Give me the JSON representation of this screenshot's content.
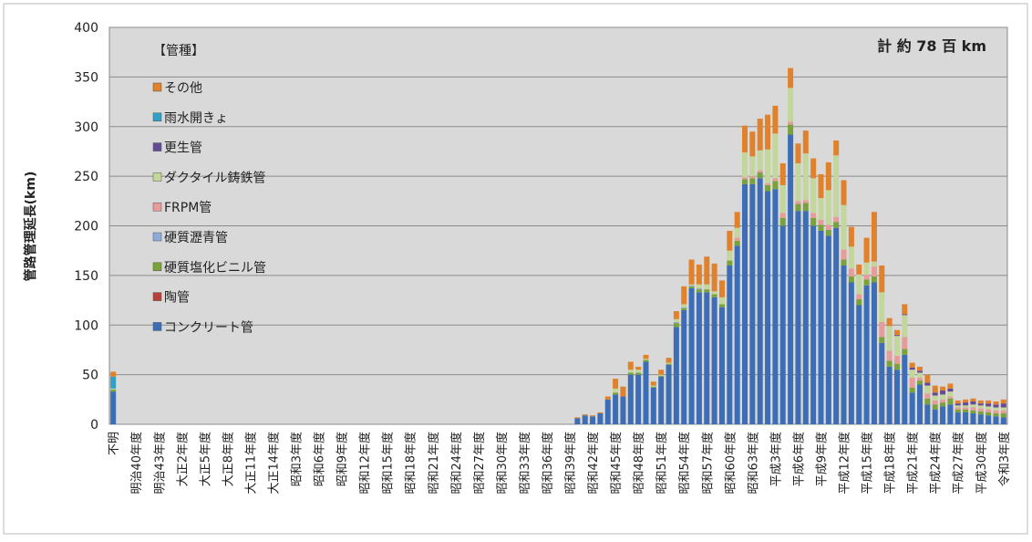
{
  "chart_data": {
    "type": "stacked-bar",
    "ylabel": "管路管理延長(km)",
    "annotation": "計 約 78 百 km",
    "legend_title": "【管種】",
    "categories": [
      "不明",
      null,
      null,
      "明治40年度",
      null,
      null,
      "明治43年度",
      null,
      null,
      "大正2年度",
      null,
      null,
      "大正5年度",
      null,
      null,
      "大正8年度",
      null,
      null,
      "大正11年度",
      null,
      null,
      "大正14年度",
      null,
      null,
      "昭和3年度",
      null,
      null,
      "昭和6年度",
      null,
      null,
      "昭和9年度",
      null,
      null,
      "昭和12年度",
      null,
      null,
      "昭和15年度",
      null,
      null,
      "昭和18年度",
      null,
      null,
      "昭和21年度",
      null,
      null,
      "昭和24年度",
      null,
      null,
      "昭和27年度",
      null,
      null,
      "昭和30年度",
      null,
      null,
      "昭和33年度",
      null,
      null,
      "昭和36年度",
      null,
      null,
      "昭和39年度",
      null,
      null,
      "昭和42年度",
      null,
      null,
      "昭和45年度",
      null,
      null,
      "昭和48年度",
      null,
      null,
      "昭和51年度",
      null,
      null,
      "昭和54年度",
      null,
      null,
      "昭和57年度",
      null,
      null,
      "昭和60年度",
      null,
      null,
      "昭和63年度",
      null,
      null,
      "平成3年度",
      null,
      null,
      "平成6年度",
      null,
      null,
      "平成9年度",
      null,
      null,
      "平成12年度",
      null,
      null,
      "平成15年度",
      null,
      null,
      "平成18年度",
      null,
      null,
      "平成21年度",
      null,
      null,
      "平成24年度",
      null,
      null,
      "平成27年度",
      null,
      null,
      "平成30年度",
      null,
      null,
      "令和3年度"
    ],
    "series": [
      {
        "name": "コンクリート管",
        "color": "#3d6db5",
        "values": [
          33,
          0,
          0,
          0,
          0,
          0,
          0,
          0,
          0,
          0,
          0,
          0,
          0,
          0,
          0,
          0,
          0,
          0,
          0,
          0,
          0,
          0,
          0,
          0,
          0,
          0,
          0,
          0,
          0,
          0,
          0,
          0,
          0,
          0,
          0,
          0,
          0,
          0,
          0,
          0,
          0,
          0,
          0,
          0,
          0,
          0,
          0,
          0,
          0,
          0,
          0,
          0,
          0,
          0,
          0,
          0,
          0,
          0,
          0,
          0,
          0,
          6,
          9,
          8,
          11,
          25,
          30,
          28,
          50,
          50,
          63,
          37,
          48,
          60,
          98,
          115,
          137,
          133,
          133,
          128,
          118,
          160,
          180,
          242,
          242,
          248,
          235,
          237,
          200,
          292,
          215,
          215,
          200,
          195,
          190,
          198,
          160,
          143,
          120,
          140,
          143,
          82,
          58,
          55,
          70,
          32,
          40,
          20,
          15,
          18,
          20,
          12,
          12,
          11,
          10,
          9,
          8,
          7
        ]
      },
      {
        "name": "陶管",
        "color": "#b8403a",
        "values": [
          0,
          0,
          0,
          0,
          0,
          0,
          0,
          0,
          0,
          0,
          0,
          0,
          0,
          0,
          0,
          0,
          0,
          0,
          0,
          0,
          0,
          0,
          0,
          0,
          0,
          0,
          0,
          0,
          0,
          0,
          0,
          0,
          0,
          0,
          0,
          0,
          0,
          0,
          0,
          0,
          0,
          0,
          0,
          0,
          0,
          0,
          0,
          0,
          0,
          0,
          0,
          0,
          0,
          0,
          0,
          0,
          0,
          0,
          0,
          0,
          0,
          0,
          0,
          0,
          0,
          0,
          0,
          0,
          0,
          0,
          0,
          0,
          0,
          0,
          0,
          0,
          0,
          0,
          0,
          0,
          0,
          0,
          0,
          0,
          0,
          0,
          0,
          0,
          0,
          0,
          0,
          0,
          0,
          0,
          0,
          0,
          0,
          0,
          0,
          0,
          0,
          0,
          0,
          0,
          0,
          0,
          0,
          0,
          0,
          0,
          0,
          0,
          0,
          0,
          0,
          0,
          0,
          0
        ]
      },
      {
        "name": "硬質塩化ビニル管",
        "color": "#7aa23a",
        "values": [
          2,
          0,
          0,
          0,
          0,
          0,
          0,
          0,
          0,
          0,
          0,
          0,
          0,
          0,
          0,
          0,
          0,
          0,
          0,
          0,
          0,
          0,
          0,
          0,
          0,
          0,
          0,
          0,
          0,
          0,
          0,
          0,
          0,
          0,
          0,
          0,
          0,
          0,
          0,
          0,
          0,
          0,
          0,
          0,
          0,
          0,
          0,
          0,
          0,
          0,
          0,
          0,
          0,
          0,
          0,
          0,
          0,
          0,
          0,
          0,
          0,
          0,
          0,
          0,
          0,
          0,
          2,
          0,
          2,
          2,
          2,
          1,
          1,
          1,
          4,
          2,
          2,
          3,
          3,
          3,
          3,
          5,
          5,
          5,
          6,
          6,
          6,
          8,
          8,
          10,
          7,
          8,
          8,
          6,
          6,
          6,
          6,
          6,
          6,
          6,
          6,
          6,
          6,
          6,
          6,
          5,
          4,
          6,
          5,
          4,
          6,
          3,
          3,
          3,
          3,
          3,
          3,
          4
        ]
      },
      {
        "name": "硬質瀝青管",
        "color": "#8eaad8",
        "values": [
          0,
          0,
          0,
          0,
          0,
          0,
          0,
          0,
          0,
          0,
          0,
          0,
          0,
          0,
          0,
          0,
          0,
          0,
          0,
          0,
          0,
          0,
          0,
          0,
          0,
          0,
          0,
          0,
          0,
          0,
          0,
          0,
          0,
          0,
          0,
          0,
          0,
          0,
          0,
          0,
          0,
          0,
          0,
          0,
          0,
          0,
          0,
          0,
          0,
          0,
          0,
          0,
          0,
          0,
          0,
          0,
          0,
          0,
          0,
          0,
          0,
          0,
          0,
          0,
          0,
          0,
          0,
          0,
          0,
          0,
          0,
          0,
          0,
          0,
          1,
          1,
          1,
          1,
          0,
          0,
          0,
          0,
          0,
          0,
          0,
          0,
          0,
          0,
          0,
          0,
          0,
          0,
          0,
          0,
          0,
          0,
          0,
          0,
          0,
          0,
          0,
          0,
          0,
          0,
          0,
          0,
          0,
          0,
          0,
          0,
          0,
          0,
          0,
          0,
          0,
          0,
          0,
          0
        ]
      },
      {
        "name": "FRPM管",
        "color": "#e79c9c",
        "values": [
          0,
          0,
          0,
          0,
          0,
          0,
          0,
          0,
          0,
          0,
          0,
          0,
          0,
          0,
          0,
          0,
          0,
          0,
          0,
          0,
          0,
          0,
          0,
          0,
          0,
          0,
          0,
          0,
          0,
          0,
          0,
          0,
          0,
          0,
          0,
          0,
          0,
          0,
          0,
          0,
          0,
          0,
          0,
          0,
          0,
          0,
          0,
          0,
          0,
          0,
          0,
          0,
          0,
          0,
          0,
          0,
          0,
          0,
          0,
          0,
          0,
          0,
          0,
          0,
          0,
          0,
          0,
          0,
          0,
          0,
          0,
          0,
          0,
          0,
          0,
          0,
          0,
          0,
          0,
          0,
          0,
          0,
          3,
          2,
          2,
          2,
          2,
          3,
          5,
          3,
          3,
          3,
          5,
          5,
          5,
          5,
          10,
          8,
          5,
          5,
          10,
          15,
          10,
          8,
          12,
          10,
          3,
          5,
          4,
          3,
          2,
          2,
          2,
          3,
          3,
          3,
          3,
          3
        ]
      },
      {
        "name": "ダクタイル鋳鉄管",
        "color": "#c3d69b",
        "values": [
          1,
          0,
          0,
          0,
          0,
          0,
          0,
          0,
          0,
          0,
          0,
          0,
          0,
          0,
          0,
          0,
          0,
          0,
          0,
          0,
          0,
          0,
          0,
          0,
          0,
          0,
          0,
          0,
          0,
          0,
          0,
          0,
          0,
          0,
          0,
          0,
          0,
          0,
          0,
          0,
          0,
          0,
          0,
          0,
          0,
          0,
          0,
          0,
          0,
          0,
          0,
          0,
          0,
          0,
          0,
          0,
          0,
          0,
          0,
          0,
          0,
          0,
          0,
          0,
          0,
          0,
          4,
          0,
          3,
          3,
          1,
          1,
          1,
          1,
          3,
          3,
          1,
          4,
          5,
          3,
          7,
          10,
          10,
          25,
          20,
          20,
          34,
          45,
          28,
          34,
          38,
          47,
          35,
          22,
          35,
          62,
          45,
          22,
          20,
          12,
          5,
          30,
          25,
          20,
          22,
          8,
          5,
          8,
          5,
          5,
          5,
          2,
          2,
          3,
          3,
          3,
          3,
          3
        ]
      },
      {
        "name": "更生管",
        "color": "#654b92",
        "values": [
          0,
          0,
          0,
          0,
          0,
          0,
          0,
          0,
          0,
          0,
          0,
          0,
          0,
          0,
          0,
          0,
          0,
          0,
          0,
          0,
          0,
          0,
          0,
          0,
          0,
          0,
          0,
          0,
          0,
          0,
          0,
          0,
          0,
          0,
          0,
          0,
          0,
          0,
          0,
          0,
          0,
          0,
          0,
          0,
          0,
          0,
          0,
          0,
          0,
          0,
          0,
          0,
          0,
          0,
          0,
          0,
          0,
          0,
          0,
          0,
          0,
          0,
          0,
          0,
          0,
          0,
          0,
          0,
          0,
          0,
          0,
          0,
          0,
          0,
          0,
          0,
          0,
          0,
          0,
          0,
          0,
          0,
          0,
          0,
          0,
          0,
          0,
          0,
          0,
          0,
          0,
          0,
          0,
          0,
          0,
          0,
          0,
          0,
          0,
          0,
          0,
          0,
          0,
          1,
          1,
          2,
          2,
          3,
          3,
          4,
          3,
          2,
          3,
          3,
          2,
          3,
          3,
          4
        ]
      },
      {
        "name": "雨水開きょ",
        "color": "#31a0c2",
        "values": [
          12,
          0,
          0,
          0,
          0,
          0,
          0,
          0,
          0,
          0,
          0,
          0,
          0,
          0,
          0,
          0,
          0,
          0,
          0,
          0,
          0,
          0,
          0,
          0,
          0,
          0,
          0,
          0,
          0,
          0,
          0,
          0,
          0,
          0,
          0,
          0,
          0,
          0,
          0,
          0,
          0,
          0,
          0,
          0,
          0,
          0,
          0,
          0,
          0,
          0,
          0,
          0,
          0,
          0,
          0,
          0,
          0,
          0,
          0,
          0,
          0,
          0,
          0,
          0,
          0,
          0,
          0,
          0,
          0,
          0,
          0,
          0,
          0,
          0,
          0,
          0,
          0,
          0,
          0,
          0,
          0,
          0,
          0,
          0,
          0,
          0,
          0,
          0,
          0,
          0,
          0,
          0,
          0,
          0,
          0,
          0,
          0,
          0,
          0,
          0,
          0,
          0,
          0,
          0,
          0,
          0,
          0,
          0,
          0,
          0,
          0,
          0,
          0,
          0,
          0,
          0,
          0,
          0
        ]
      },
      {
        "name": "その他",
        "color": "#e0812c",
        "values": [
          5,
          0,
          0,
          0,
          0,
          0,
          0,
          0,
          0,
          0,
          0,
          0,
          0,
          0,
          0,
          0,
          0,
          0,
          0,
          0,
          0,
          0,
          0,
          0,
          0,
          0,
          0,
          0,
          0,
          0,
          0,
          0,
          0,
          0,
          0,
          0,
          0,
          0,
          0,
          0,
          0,
          0,
          0,
          0,
          0,
          0,
          0,
          0,
          0,
          0,
          0,
          0,
          0,
          0,
          0,
          0,
          0,
          0,
          0,
          0,
          0,
          1,
          1,
          1,
          1,
          3,
          10,
          10,
          8,
          3,
          4,
          4,
          5,
          5,
          8,
          18,
          25,
          20,
          28,
          28,
          17,
          20,
          16,
          27,
          25,
          32,
          35,
          28,
          22,
          20,
          20,
          23,
          20,
          24,
          28,
          15,
          25,
          20,
          10,
          25,
          50,
          27,
          8,
          5,
          10,
          5,
          4,
          8,
          7,
          4,
          5,
          3,
          3,
          3,
          3,
          3,
          3,
          4
        ]
      }
    ],
    "ylim": [
      0,
      400
    ],
    "yticks": [
      0,
      50,
      100,
      150,
      200,
      250,
      300,
      350,
      400
    ],
    "grid": true
  }
}
